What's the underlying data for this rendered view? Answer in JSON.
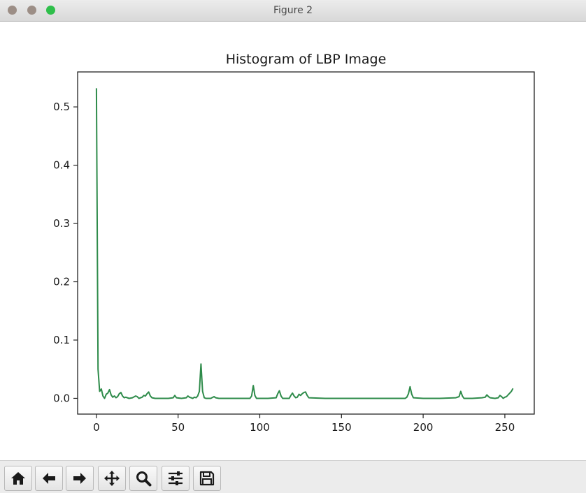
{
  "window": {
    "title": "Figure 2"
  },
  "toolbar": {
    "buttons": [
      {
        "icon": "home-icon"
      },
      {
        "icon": "arrow-left-icon"
      },
      {
        "icon": "arrow-right-icon"
      },
      {
        "icon": "move-icon"
      },
      {
        "icon": "zoom-icon"
      },
      {
        "icon": "sliders-icon"
      },
      {
        "icon": "save-icon"
      }
    ]
  },
  "chart_data": {
    "type": "line",
    "title": "Histogram of LBP Image",
    "xlabel": "",
    "ylabel": "",
    "xlim": [
      -11.5,
      268
    ],
    "ylim": [
      -0.027,
      0.56
    ],
    "xticks": [
      0,
      50,
      100,
      150,
      200,
      250
    ],
    "yticks": [
      0.0,
      0.1,
      0.2,
      0.3,
      0.4,
      0.5
    ],
    "ytick_labels": [
      "0.0",
      "0.1",
      "0.2",
      "0.3",
      "0.4",
      "0.5"
    ],
    "grid": false,
    "color": "#2e8b4a",
    "series": [
      {
        "x": [
          0,
          1,
          2,
          3,
          4,
          5,
          6,
          7,
          8,
          9,
          10,
          11,
          12,
          13,
          14,
          15,
          16,
          17,
          18,
          20,
          22,
          24,
          25,
          26,
          28,
          29,
          30,
          31,
          32,
          33,
          34,
          36,
          40,
          44,
          47,
          48,
          49,
          52,
          55,
          56,
          57,
          59,
          60,
          61,
          62,
          63,
          64,
          65,
          66,
          67,
          70,
          72,
          73,
          75,
          80,
          90,
          94,
          95,
          96,
          97,
          98,
          100,
          105,
          110,
          111,
          112,
          113,
          114,
          118,
          119,
          120,
          121,
          122,
          123,
          124,
          125,
          126,
          127,
          128,
          129,
          130,
          140,
          150,
          160,
          170,
          180,
          189,
          190,
          191,
          192,
          193,
          194,
          200,
          210,
          220,
          222,
          223,
          224,
          225,
          230,
          236,
          238,
          239,
          240,
          241,
          244,
          246,
          247,
          248,
          249,
          250,
          251,
          252,
          253,
          254,
          255
        ],
        "y": [
          0.532,
          0.05,
          0.012,
          0.016,
          0.004,
          0.0,
          0.007,
          0.009,
          0.015,
          0.006,
          0.002,
          0.004,
          0.001,
          0.003,
          0.008,
          0.01,
          0.004,
          0.001,
          0.002,
          0.0,
          0.001,
          0.004,
          0.003,
          0.0,
          0.002,
          0.005,
          0.004,
          0.008,
          0.011,
          0.004,
          0.001,
          0.0,
          0.0,
          0.0,
          0.001,
          0.005,
          0.001,
          0.0,
          0.001,
          0.004,
          0.002,
          0.0,
          0.002,
          0.001,
          0.004,
          0.012,
          0.059,
          0.012,
          0.001,
          0.0,
          0.0,
          0.003,
          0.001,
          0.0,
          0.0,
          0.0,
          0.0,
          0.004,
          0.022,
          0.005,
          0.0,
          0.0,
          0.0,
          0.001,
          0.008,
          0.013,
          0.004,
          0.0,
          0.0,
          0.005,
          0.009,
          0.004,
          0.001,
          0.002,
          0.007,
          0.005,
          0.008,
          0.01,
          0.011,
          0.005,
          0.001,
          0.0,
          0.0,
          0.0,
          0.0,
          0.0,
          0.0,
          0.002,
          0.008,
          0.02,
          0.007,
          0.001,
          0.0,
          0.0,
          0.001,
          0.003,
          0.012,
          0.004,
          0.0,
          0.0,
          0.001,
          0.002,
          0.006,
          0.003,
          0.001,
          0.0,
          0.001,
          0.005,
          0.003,
          0.0,
          0.002,
          0.003,
          0.006,
          0.009,
          0.012,
          0.017
        ]
      }
    ]
  }
}
